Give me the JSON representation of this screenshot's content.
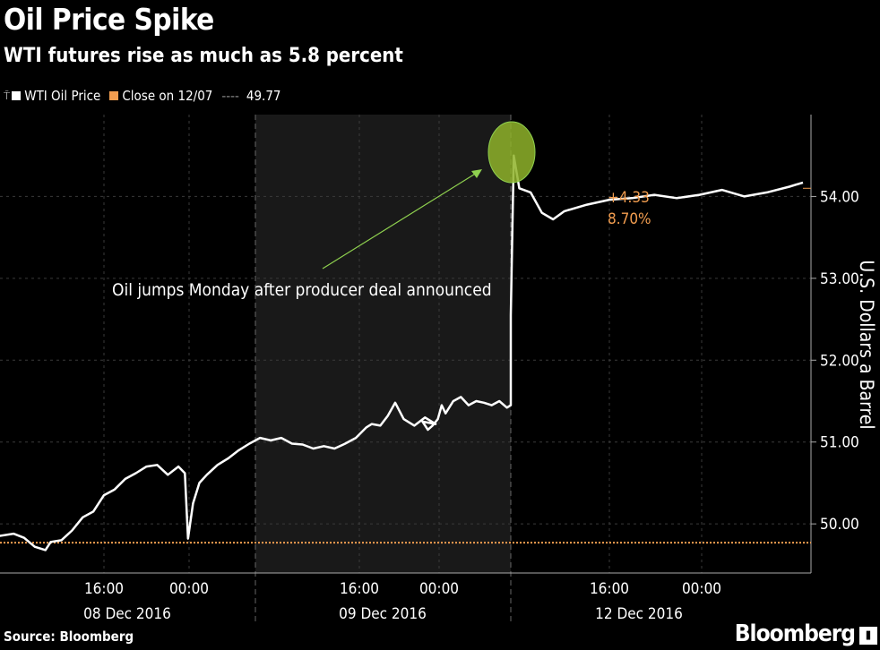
{
  "title": "Oil Price Spike",
  "subtitle": "WTI futures rise as much as 5.8 percent",
  "legend": {
    "pin_icon": "pin-icon",
    "series_label": "WTI Oil Price",
    "reference_label": "Close on 12/07",
    "reference_dashes": "----",
    "reference_value": "49.77"
  },
  "colors": {
    "background": "#000000",
    "price_line": "#ffffff",
    "reference": "#f29d4f",
    "highlight_fill": "#8fb32a",
    "highlight_arrow": "#8fd14f",
    "shaded_session": "#191919",
    "grid": "#3a3a3a"
  },
  "annotation": "Oil jumps Monday after producer deal announced",
  "change_box": {
    "absolute": "+4.33",
    "percent": "8.70%"
  },
  "source": "Source: Bloomberg",
  "brand": "Bloomberg",
  "chart_data": {
    "type": "line",
    "ylabel": "U.S. Dollars a Barrel",
    "ylim": [
      49.4,
      55.0
    ],
    "y_ticks": [
      50.0,
      51.0,
      52.0,
      53.0,
      54.0
    ],
    "y_tick_labels": [
      "50.00",
      "51.00",
      "52.00",
      "53.00",
      "54.00"
    ],
    "y_axis_side": "right",
    "grid": true,
    "legend_position": "top-left",
    "x_tick_labels": [
      {
        "time": "16:00",
        "day": 0,
        "hour": 16
      },
      {
        "time": "00:00",
        "day": 1,
        "hour": 0
      },
      {
        "time": "16:00",
        "day": 1,
        "hour": 16
      },
      {
        "time": "00:00",
        "day": 2,
        "hour": 0
      },
      {
        "time": "16:00",
        "day": 2,
        "hour": 16
      },
      {
        "time": "00:00",
        "day": 3,
        "hour": 0
      }
    ],
    "date_labels": [
      "08 Dec 2016",
      "09 Dec 2016",
      "12 Dec 2016"
    ],
    "reference_line": {
      "name": "Close on 12/07",
      "value": 49.77
    },
    "series": [
      {
        "name": "WTI Oil Price",
        "points": [
          [
            0,
            0.0,
            49.95
          ],
          [
            0,
            1.0,
            50.0
          ],
          [
            0,
            2.0,
            50.02
          ],
          [
            0,
            3.0,
            49.9
          ],
          [
            0,
            4.5,
            49.88
          ],
          [
            0,
            6.0,
            49.85
          ],
          [
            0,
            7.5,
            49.88
          ],
          [
            0,
            8.5,
            49.83
          ],
          [
            0,
            9.5,
            49.72
          ],
          [
            0,
            10.5,
            49.68
          ],
          [
            0,
            11.0,
            49.78
          ],
          [
            0,
            12.0,
            49.8
          ],
          [
            0,
            13.0,
            49.92
          ],
          [
            0,
            14.0,
            50.08
          ],
          [
            0,
            15.0,
            50.15
          ],
          [
            0,
            16.0,
            50.35
          ],
          [
            0,
            17.0,
            50.42
          ],
          [
            0,
            18.0,
            50.55
          ],
          [
            0,
            19.0,
            50.62
          ],
          [
            0,
            20.0,
            50.7
          ],
          [
            0,
            21.0,
            50.72
          ],
          [
            0,
            22.0,
            50.6
          ],
          [
            0,
            23.0,
            50.7
          ],
          [
            0,
            23.6,
            50.62
          ],
          [
            0,
            23.9,
            49.82
          ],
          [
            1,
            0.2,
            50.25
          ],
          [
            1,
            0.8,
            50.5
          ],
          [
            1,
            1.5,
            50.6
          ],
          [
            1,
            2.5,
            50.72
          ],
          [
            1,
            3.5,
            50.8
          ],
          [
            1,
            4.5,
            50.9
          ],
          [
            1,
            5.5,
            50.98
          ],
          [
            1,
            6.5,
            51.05
          ],
          [
            1,
            7.5,
            51.02
          ],
          [
            1,
            8.5,
            51.05
          ],
          [
            1,
            9.5,
            50.98
          ],
          [
            1,
            10.5,
            50.97
          ],
          [
            1,
            11.5,
            50.92
          ],
          [
            1,
            12.5,
            50.95
          ],
          [
            1,
            13.5,
            50.92
          ],
          [
            1,
            14.5,
            50.98
          ],
          [
            1,
            15.5,
            51.05
          ],
          [
            1,
            16.5,
            51.18
          ],
          [
            1,
            17.0,
            51.22
          ],
          [
            1,
            17.8,
            51.2
          ],
          [
            1,
            18.5,
            51.32
          ],
          [
            1,
            19.2,
            51.48
          ],
          [
            1,
            20.0,
            51.28
          ],
          [
            1,
            21.0,
            51.2
          ],
          [
            1,
            22.0,
            51.3
          ],
          [
            1,
            23.0,
            51.22
          ],
          [
            2,
            0.0,
            51.25
          ],
          [
            2,
            0.7,
            51.15
          ],
          [
            2,
            1.3,
            51.2
          ],
          [
            2,
            2.0,
            51.28
          ],
          [
            2,
            2.5,
            51.45
          ],
          [
            2,
            3.0,
            51.35
          ],
          [
            2,
            4.0,
            51.5
          ],
          [
            2,
            5.0,
            51.55
          ],
          [
            2,
            6.0,
            51.45
          ],
          [
            2,
            7.0,
            51.5
          ],
          [
            2,
            8.0,
            51.48
          ],
          [
            2,
            9.0,
            51.45
          ],
          [
            2,
            10.0,
            51.5
          ],
          [
            2,
            11.0,
            51.42
          ],
          [
            2,
            11.5,
            51.45
          ],
          [
            2,
            11.62,
            52.55
          ],
          [
            2,
            11.75,
            54.5
          ],
          [
            2,
            12.0,
            54.1
          ],
          [
            2,
            12.5,
            54.05
          ],
          [
            2,
            13.0,
            53.8
          ],
          [
            2,
            13.5,
            53.72
          ],
          [
            2,
            14.0,
            53.82
          ],
          [
            2,
            15.0,
            53.9
          ],
          [
            2,
            16.0,
            53.96
          ],
          [
            2,
            17.0,
            53.98
          ],
          [
            2,
            18.0,
            54.02
          ],
          [
            2,
            19.0,
            53.98
          ],
          [
            2,
            20.0,
            54.02
          ],
          [
            2,
            21.0,
            54.08
          ],
          [
            2,
            22.0,
            54.0
          ],
          [
            2,
            23.0,
            54.05
          ],
          [
            2,
            24.0,
            54.12
          ],
          [
            2,
            24.6,
            54.17
          ]
        ]
      }
    ],
    "last_value": 54.1
  }
}
